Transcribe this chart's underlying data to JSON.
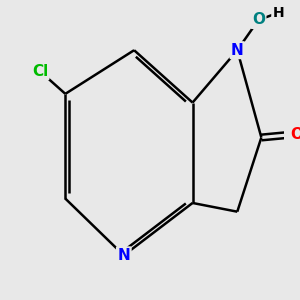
{
  "bg_color": "#e8e8e8",
  "bond_color": "#000000",
  "bond_width": 1.8,
  "atom_colors": {
    "N": "#0000ff",
    "O_red": "#ff0000",
    "O_teal": "#008080",
    "Cl": "#00bb00",
    "C": "#000000",
    "H": "#000000"
  },
  "font_size_atom": 11,
  "font_size_H": 10
}
